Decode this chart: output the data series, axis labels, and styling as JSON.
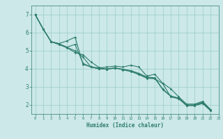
{
  "xlabel": "Humidex (Indice chaleur)",
  "ylabel": "",
  "xlim": [
    -0.5,
    23
  ],
  "ylim": [
    1.5,
    7.5
  ],
  "xticks": [
    0,
    1,
    2,
    3,
    4,
    5,
    6,
    7,
    8,
    9,
    10,
    11,
    12,
    13,
    14,
    15,
    16,
    17,
    18,
    19,
    20,
    21,
    22,
    23
  ],
  "yticks": [
    2,
    3,
    4,
    5,
    6,
    7
  ],
  "background_color": "#cce8e8",
  "plot_bg_color": "#cce8e8",
  "grid_color": "#99cccc",
  "line_color": "#2e7d6e",
  "lines": [
    [
      7.0,
      6.2,
      5.5,
      5.4,
      5.55,
      5.75,
      4.25,
      4.1,
      4.05,
      4.1,
      4.15,
      4.1,
      4.2,
      4.1,
      3.6,
      3.7,
      3.2,
      2.9,
      2.45,
      2.05,
      2.05,
      2.2,
      1.75
    ],
    [
      7.0,
      6.2,
      5.5,
      5.38,
      5.2,
      5.35,
      4.3,
      4.1,
      4.0,
      4.0,
      4.05,
      3.98,
      3.9,
      3.75,
      3.55,
      3.5,
      2.88,
      2.5,
      2.38,
      2.0,
      2.0,
      2.15,
      1.72
    ],
    [
      7.0,
      6.2,
      5.5,
      5.36,
      5.18,
      5.0,
      4.65,
      4.1,
      4.0,
      3.98,
      4.05,
      3.96,
      3.88,
      3.72,
      3.5,
      3.48,
      2.85,
      2.48,
      2.36,
      1.98,
      1.98,
      2.12,
      1.7
    ],
    [
      7.0,
      6.2,
      5.5,
      5.34,
      5.16,
      4.9,
      4.78,
      4.38,
      4.08,
      3.96,
      4.05,
      3.94,
      3.85,
      3.68,
      3.48,
      3.45,
      3.18,
      2.45,
      2.34,
      1.96,
      1.96,
      2.08,
      1.68
    ]
  ],
  "marker": "D",
  "marker_size": 1.5,
  "line_width": 0.8
}
